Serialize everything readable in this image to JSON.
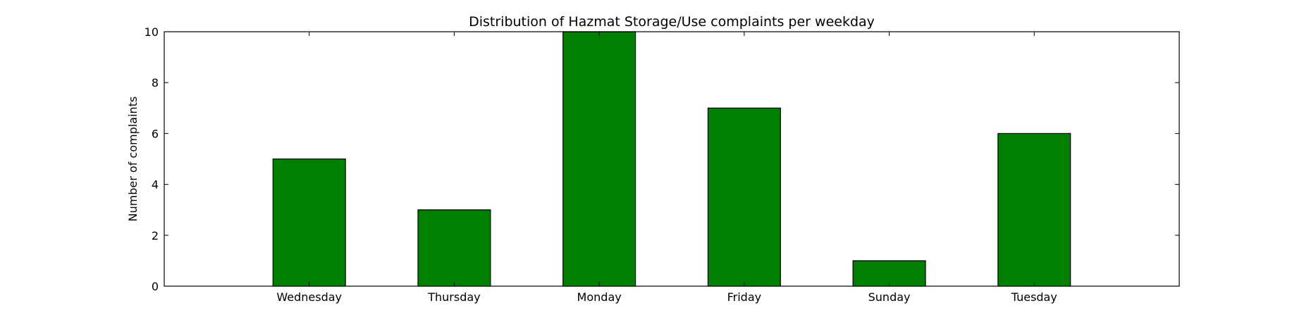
{
  "chart_data": {
    "type": "bar",
    "title": "Distribution of  Hazmat Storage/Use complaints per weekday",
    "xlabel": "",
    "ylabel": "Number of complaints",
    "categories": [
      "Wednesday",
      "Thursday",
      "Monday",
      "Friday",
      "Sunday",
      "Tuesday"
    ],
    "values": [
      5,
      3,
      10,
      7,
      1,
      6
    ],
    "ylim": [
      0,
      10
    ],
    "yticks": [
      0,
      2,
      4,
      6,
      8,
      10
    ],
    "bar_color": "#008000",
    "edge_color": "#000000",
    "grid": false,
    "legend": "none"
  }
}
